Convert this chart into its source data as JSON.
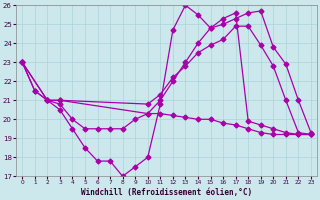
{
  "xlabel": "Windchill (Refroidissement éolien,°C)",
  "bg_color": "#cce8ec",
  "line_color": "#aa00aa",
  "xlim": [
    -0.5,
    23.5
  ],
  "ylim": [
    17,
    26
  ],
  "xticks": [
    0,
    1,
    2,
    3,
    4,
    5,
    6,
    7,
    8,
    9,
    10,
    11,
    12,
    13,
    14,
    15,
    16,
    17,
    18,
    19,
    20,
    21,
    22,
    23
  ],
  "yticks": [
    17,
    18,
    19,
    20,
    21,
    22,
    23,
    24,
    25,
    26
  ],
  "series": [
    {
      "x": [
        0,
        1,
        2,
        3,
        10,
        11,
        12,
        13,
        14,
        15,
        16,
        17,
        18,
        19,
        20,
        21,
        22,
        23
      ],
      "y": [
        23,
        21.5,
        21,
        21,
        20.3,
        21,
        22,
        23,
        24,
        24.8,
        25.0,
        25.3,
        25.6,
        25.7,
        23.8,
        22.9,
        21.0,
        19.3
      ]
    },
    {
      "x": [
        0,
        1,
        2,
        3,
        4,
        5,
        6,
        7,
        8,
        9,
        10,
        11,
        12,
        13,
        14,
        15,
        16,
        17,
        18,
        19,
        20,
        21,
        22,
        23
      ],
      "y": [
        23,
        21.5,
        21,
        20.5,
        19.5,
        18.5,
        17.8,
        17.8,
        17.0,
        17.5,
        18.0,
        20.8,
        24.7,
        26.0,
        25.5,
        24.8,
        25.3,
        25.6,
        19.9,
        19.7,
        19.5,
        19.3,
        19.2,
        19.2
      ]
    },
    {
      "x": [
        0,
        2,
        3,
        4,
        5,
        6,
        7,
        8,
        9,
        10,
        11,
        12,
        13,
        14,
        15,
        16,
        17,
        18,
        19,
        20,
        21,
        22,
        23
      ],
      "y": [
        23,
        21,
        20.8,
        20.0,
        19.5,
        19.5,
        19.5,
        19.5,
        20.0,
        20.3,
        20.3,
        20.2,
        20.1,
        20.0,
        20.0,
        19.8,
        19.7,
        19.5,
        19.3,
        19.2,
        19.2,
        19.2,
        19.2
      ]
    },
    {
      "x": [
        0,
        2,
        3,
        10,
        11,
        12,
        13,
        14,
        15,
        16,
        17,
        18,
        19,
        20,
        21,
        22,
        23
      ],
      "y": [
        23,
        21,
        21,
        20.8,
        21.3,
        22.2,
        22.8,
        23.5,
        23.9,
        24.2,
        24.9,
        24.9,
        23.9,
        22.8,
        21.0,
        19.3,
        19.2
      ]
    }
  ]
}
